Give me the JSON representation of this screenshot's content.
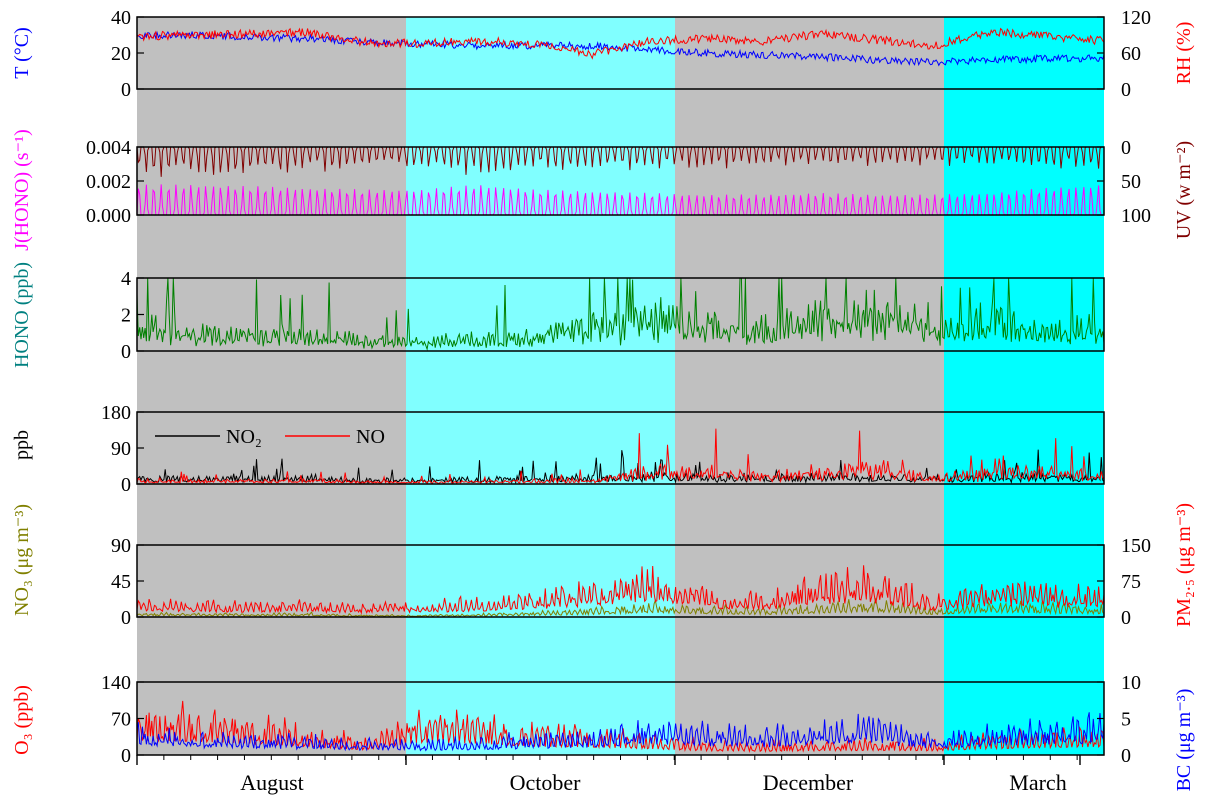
{
  "chart_data": {
    "type": "line",
    "months": [
      "August",
      "October",
      "December",
      "March"
    ],
    "period_shading": [
      {
        "period": "August",
        "color": "#c0c0c0"
      },
      {
        "period": "October",
        "color": "#80ffff"
      },
      {
        "period": "December",
        "color": "#c0c0c0"
      },
      {
        "period": "March",
        "color": "#00ffff"
      }
    ],
    "panels": [
      {
        "id": "met",
        "left_axis": {
          "label": "T (°C)",
          "color": "#0000ff",
          "range": [
            0,
            40
          ],
          "ticks": [
            "0",
            "20",
            "40"
          ]
        },
        "right_axis": {
          "label": "RH (%)",
          "color": "#ff0000",
          "range": [
            0,
            120
          ],
          "ticks": [
            "0",
            "60",
            "120"
          ]
        },
        "series": [
          {
            "axis": "left",
            "color": "#0000ff",
            "profile": [
              30,
              30,
              29,
              28,
              26,
              25,
              24,
              24,
              24,
              22,
              20,
              19,
              18,
              16,
              15,
              16,
              17,
              17
            ]
          },
          {
            "axis": "right",
            "color": "#ff0000",
            "profile": [
              88,
              90,
              92,
              94,
              78,
              76,
              80,
              75,
              58,
              80,
              84,
              80,
              92,
              82,
              72,
              95,
              88,
              80
            ]
          }
        ]
      },
      {
        "id": "radiation",
        "left_axis": {
          "label": "J(HONO) (s⁻¹)",
          "color": "#ff00ff",
          "range": [
            0,
            0.004
          ],
          "ticks": [
            "0.000",
            "0.002",
            "0.004"
          ]
        },
        "right_axis": {
          "label": "UV (w m⁻²)",
          "color": "#800000",
          "range": [
            100,
            0
          ],
          "ticks": [
            "100",
            "50",
            "0"
          ]
        },
        "series": [
          {
            "axis": "left",
            "color": "#ff00ff",
            "profile": [
              0.0018,
              0.0018,
              0.0017,
              0.0016,
              0.0015,
              0.0015,
              0.0018,
              0.0015,
              0.0014,
              0.0013,
              0.0012,
              0.0012,
              0.0013,
              0.0012,
              0.0012,
              0.0013,
              0.0016,
              0.0018
            ]
          },
          {
            "axis": "right",
            "color": "#800000",
            "profile": [
              35,
              35,
              33,
              30,
              28,
              26,
              34,
              30,
              28,
              26,
              25,
              25,
              24,
              22,
              22,
              22,
              25,
              30
            ]
          }
        ]
      },
      {
        "id": "hono",
        "left_axis": {
          "label": "HONO (ppb)",
          "color": "#008080",
          "range": [
            0,
            4
          ],
          "ticks": [
            "0",
            "2",
            "4"
          ]
        },
        "series": [
          {
            "axis": "left",
            "color": "#008000",
            "profile": [
              1.6,
              1.0,
              0.8,
              1.0,
              0.6,
              0.5,
              0.7,
              0.8,
              1.4,
              1.9,
              1.6,
              1.2,
              1.9,
              2.2,
              1.0,
              1.8,
              0.9,
              1.5
            ]
          }
        ]
      },
      {
        "id": "nox",
        "left_axis": {
          "label": "ppb",
          "color": "#000000",
          "range": [
            0,
            180
          ],
          "ticks": [
            "0",
            "90",
            "180"
          ]
        },
        "legend": [
          "NO₂",
          "NO"
        ],
        "series": [
          {
            "name": "NO₂",
            "axis": "left",
            "color": "#000000",
            "profile": [
              14,
              13,
              13,
              15,
              10,
              10,
              12,
              14,
              16,
              20,
              18,
              17,
              18,
              18,
              14,
              18,
              18,
              17
            ]
          },
          {
            "name": "NO",
            "axis": "left",
            "color": "#ff0000",
            "profile": [
              10,
              8,
              8,
              9,
              5,
              5,
              6,
              8,
              10,
              30,
              35,
              18,
              35,
              40,
              15,
              28,
              30,
              20
            ]
          }
        ]
      },
      {
        "id": "aerosol",
        "left_axis": {
          "label": "NO₃ (μg m⁻³)",
          "color": "#808000",
          "range": [
            0,
            90
          ],
          "ticks": [
            "0",
            "45",
            "90"
          ]
        },
        "right_axis": {
          "label": "PM₂.₅ (μg m⁻³)",
          "color": "#ff0000",
          "range": [
            0,
            150
          ],
          "ticks": [
            "0",
            "75",
            "150"
          ]
        },
        "series": [
          {
            "axis": "left",
            "color": "#808000",
            "profile": [
              4,
              4,
              3,
              4,
              2,
              2,
              3,
              5,
              8,
              14,
              10,
              8,
              12,
              16,
              8,
              15,
              12,
              10
            ]
          },
          {
            "axis": "right",
            "color": "#ff0000",
            "profile": [
              28,
              25,
              22,
              24,
              20,
              22,
              30,
              40,
              55,
              80,
              45,
              35,
              65,
              70,
              30,
              55,
              50,
              45
            ]
          }
        ]
      },
      {
        "id": "ozone_bc",
        "left_axis": {
          "label": "O₃ (ppb)",
          "color": "#ff0000",
          "range": [
            0,
            140
          ],
          "ticks": [
            "0",
            "70",
            "140"
          ]
        },
        "right_axis": {
          "label": "BC (μg m⁻³)",
          "color": "#0000ff",
          "range": [
            0,
            10
          ],
          "ticks": [
            "0",
            "5",
            "10"
          ]
        },
        "series": [
          {
            "axis": "left",
            "color": "#ff0000",
            "profile": [
              70,
              65,
              55,
              40,
              25,
              60,
              55,
              40,
              38,
              30,
              20,
              18,
              20,
              22,
              20,
              30,
              35,
              40
            ]
          },
          {
            "axis": "right",
            "color": "#0000ff",
            "profile": [
              3,
              2.5,
              2,
              2,
              1.5,
              1.5,
              1.8,
              2.2,
              2.5,
              3.5,
              3,
              2.5,
              3.5,
              3.8,
              2,
              3,
              3.5,
              3.8
            ]
          }
        ]
      }
    ]
  }
}
